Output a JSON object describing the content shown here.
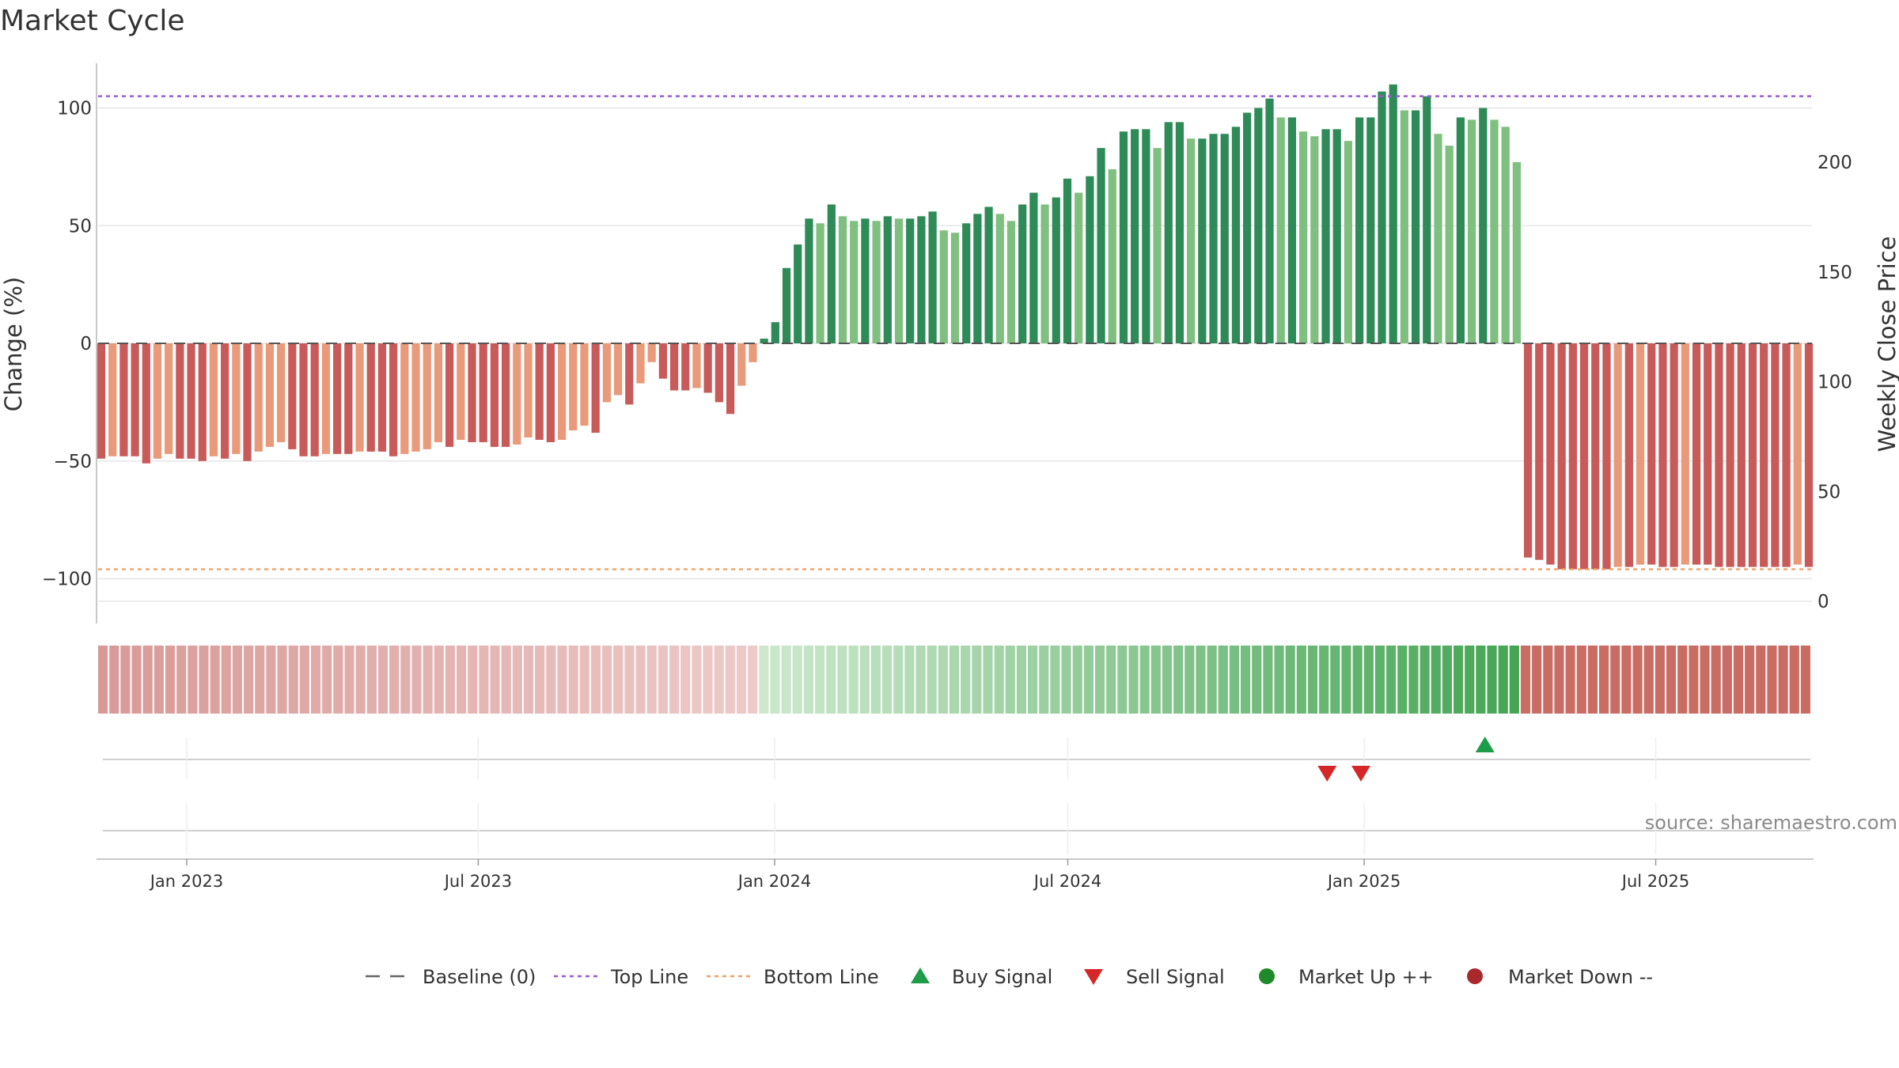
{
  "title": "Market Cycle",
  "source": "source: sharemaestro.com",
  "legend": [
    {
      "key": "baseline",
      "label": "Baseline (0)",
      "color": "#666666"
    },
    {
      "key": "top",
      "label": "Top Line",
      "color": "#9b59d0"
    },
    {
      "key": "bottom",
      "label": "Bottom Line",
      "color": "#f0a066"
    },
    {
      "key": "buy",
      "label": "Buy Signal",
      "color": "#1e9c4a"
    },
    {
      "key": "sell",
      "label": "Sell Signal",
      "color": "#d62728"
    },
    {
      "key": "mup",
      "label": "Market Up ++",
      "color": "#1f8a2a"
    },
    {
      "key": "mdown",
      "label": "Market Down --",
      "color": "#a8292c"
    }
  ],
  "chart_data": {
    "type": "bar",
    "ylabel": "Change (%)",
    "y2label": "Weekly Close Price",
    "ylim": [
      -118,
      120
    ],
    "yticks": [
      100,
      50,
      0,
      -50,
      -100
    ],
    "ytick_labels": [
      "100",
      "50",
      "0",
      "−50",
      "−100"
    ],
    "y2lim": [
      -1,
      200
    ],
    "y2ticks": [
      200,
      150,
      100,
      50,
      0
    ],
    "top_line": 105,
    "bottom_line": -96,
    "x_start": "2022-11-07",
    "x_end": "2025-10-06",
    "x_ticks": [
      {
        "date": "2023-01-01",
        "label": "Jan 2023"
      },
      {
        "date": "2023-07-01",
        "label": "Jul 2023"
      },
      {
        "date": "2024-01-01",
        "label": "Jan 2024"
      },
      {
        "date": "2024-07-01",
        "label": "Jul 2024"
      },
      {
        "date": "2025-01-01",
        "label": "Jan 2025"
      },
      {
        "date": "2025-07-01",
        "label": "Jul 2025"
      }
    ],
    "start_date": "2022-11-07",
    "interval_days": 7,
    "values": [
      -49,
      -48,
      -48,
      -48,
      -51,
      -49,
      -47,
      -49,
      -49,
      -50,
      -48,
      -49,
      -47,
      -50,
      -46,
      -44,
      -42,
      -45,
      -48,
      -48,
      -47,
      -47,
      -47,
      -46,
      -46,
      -46,
      -48,
      -47,
      -46,
      -45,
      -42,
      -44,
      -41,
      -42,
      -42,
      -44,
      -44,
      -43,
      -40,
      -41,
      -42,
      -41,
      -37,
      -35,
      -38,
      -25,
      -22,
      -26,
      -17,
      -8,
      -15,
      -20,
      -20,
      -19,
      -21,
      -25,
      -30,
      -18,
      -8,
      2,
      9,
      32,
      42,
      53,
      51,
      59,
      54,
      52,
      53,
      52,
      54,
      53,
      53,
      54,
      56,
      48,
      47,
      51,
      55,
      58,
      55,
      52,
      59,
      64,
      59,
      62,
      70,
      64,
      71,
      83,
      74,
      90,
      91,
      91,
      83,
      94,
      94,
      87,
      87,
      89,
      89,
      92,
      98,
      100,
      104,
      96,
      96,
      90,
      88,
      91,
      91,
      86,
      96,
      96,
      107,
      110,
      99,
      99,
      105,
      89,
      84,
      96,
      95,
      100,
      95,
      92,
      77,
      -91,
      -92,
      -94,
      -96,
      -96,
      -96,
      -96,
      -96,
      -95,
      -95,
      -94,
      -94,
      -95,
      -95,
      -94,
      -94,
      -94,
      -95,
      -95,
      -95,
      -95,
      -95,
      -95,
      -95,
      -94,
      -95
    ],
    "signals": [
      {
        "type": "sell",
        "date": "2024-12-09"
      },
      {
        "type": "sell",
        "date": "2024-12-30"
      },
      {
        "type": "buy",
        "date": "2025-03-17"
      }
    ]
  }
}
